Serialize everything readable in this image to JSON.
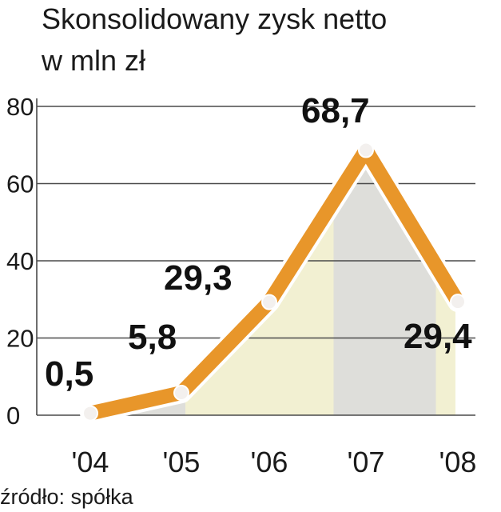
{
  "chart_data": {
    "type": "line",
    "title_line1": "Skonsolidowany zysk netto",
    "title_line2": "w mln zł",
    "categories": [
      "'04",
      "'05",
      "'06",
      "'07",
      "'08"
    ],
    "values": [
      0.5,
      5.8,
      29.3,
      68.7,
      29.4
    ],
    "value_labels": [
      "0,5",
      "5,8",
      "29,3",
      "68,7",
      "29,4"
    ],
    "yticks": [
      "0",
      "20",
      "40",
      "60",
      "80"
    ],
    "ytick_values": [
      0,
      20,
      40,
      60,
      80
    ],
    "ylim": [
      0,
      80
    ],
    "grid": true,
    "source": "źródło: spółka",
    "colors": {
      "line": "#E8962A",
      "marker_fill": "#F3F0EE",
      "grid": "#4a4a4a",
      "band_yellow": "#F2F0D2",
      "band_gray": "#DEDEDA"
    }
  }
}
